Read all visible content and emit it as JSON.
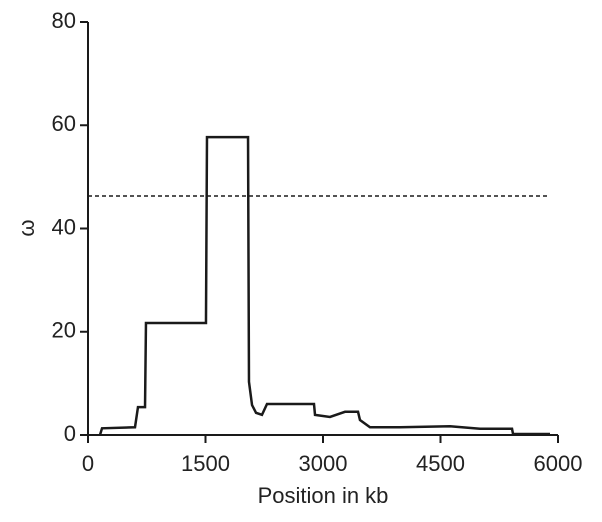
{
  "chart_data": {
    "type": "line",
    "x_label": "Position in kb",
    "y_label": "ω",
    "x": [
      153,
      179,
      600,
      638,
      728,
      740,
      1506,
      1519,
      2043,
      2055,
      2094,
      2145,
      2221,
      2285,
      2885,
      2898,
      3089,
      3281,
      3447,
      3472,
      3600,
      3983,
      4621,
      5004,
      5413,
      5426,
      5898
    ],
    "series": [
      {
        "color": "#1a1a1a",
        "values": [
          0,
          1.3,
          1.5,
          5.4,
          5.4,
          21.7,
          21.7,
          57.7,
          57.7,
          10.3,
          5.8,
          4.3,
          3.9,
          6.0,
          6.0,
          3.9,
          3.5,
          4.5,
          4.5,
          2.9,
          1.5,
          1.5,
          1.7,
          1.2,
          1.2,
          0.2,
          0.2
        ]
      }
    ],
    "threshold": 46.3,
    "xlim": [
      0,
      6000
    ],
    "xticks": [
      0,
      1500,
      3000,
      4500,
      6000
    ],
    "ylim": [
      0,
      80
    ],
    "yticks": [
      0,
      20,
      40,
      60,
      80
    ]
  }
}
